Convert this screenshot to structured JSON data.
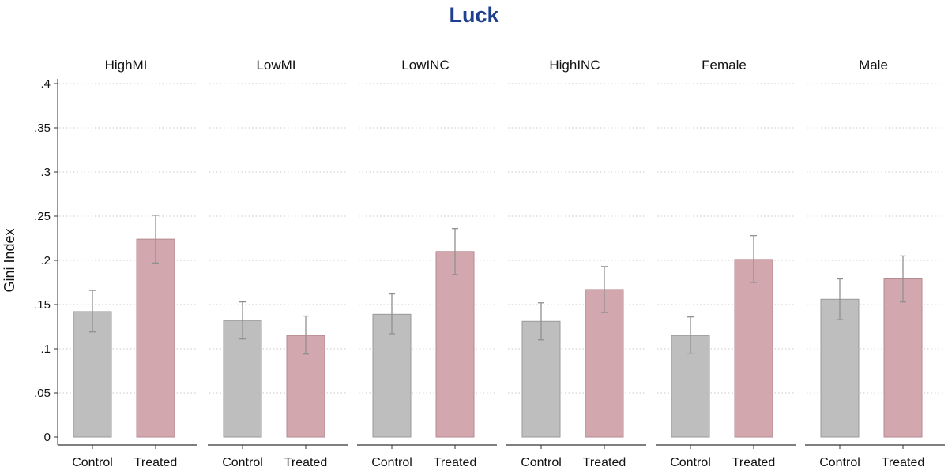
{
  "title": "Luck",
  "chart_data": {
    "type": "bar",
    "title": "Luck",
    "ylabel": "Gini Index",
    "xlabel": "",
    "ylim": [
      0,
      0.4
    ],
    "yticks": [
      0,
      0.05,
      0.1,
      0.15,
      0.2,
      0.25,
      0.3,
      0.35,
      0.4
    ],
    "ytick_labels": [
      "0",
      ".05",
      ".1",
      ".15",
      ".2",
      ".25",
      ".3",
      ".35",
      ".4"
    ],
    "grid": "horizontal dotted",
    "categories": [
      "Control",
      "Treated"
    ],
    "colors": {
      "Control": "#bebebe",
      "Treated": "#d2a7ad",
      "error_bar": "#909090",
      "title": "#1f3f8f"
    },
    "panels": [
      {
        "name": "HighMI",
        "values": [
          0.142,
          0.224
        ],
        "ci_low": [
          0.119,
          0.197
        ],
        "ci_high": [
          0.166,
          0.251
        ]
      },
      {
        "name": "LowMI",
        "values": [
          0.132,
          0.115
        ],
        "ci_low": [
          0.111,
          0.094
        ],
        "ci_high": [
          0.153,
          0.137
        ]
      },
      {
        "name": "LowINC",
        "values": [
          0.139,
          0.21
        ],
        "ci_low": [
          0.117,
          0.184
        ],
        "ci_high": [
          0.162,
          0.236
        ]
      },
      {
        "name": "HighINC",
        "values": [
          0.131,
          0.167
        ],
        "ci_low": [
          0.11,
          0.141
        ],
        "ci_high": [
          0.152,
          0.193
        ]
      },
      {
        "name": "Female",
        "values": [
          0.115,
          0.201
        ],
        "ci_low": [
          0.095,
          0.175
        ],
        "ci_high": [
          0.136,
          0.228
        ]
      },
      {
        "name": "Male",
        "values": [
          0.156,
          0.179
        ],
        "ci_low": [
          0.133,
          0.153
        ],
        "ci_high": [
          0.179,
          0.205
        ]
      }
    ]
  }
}
